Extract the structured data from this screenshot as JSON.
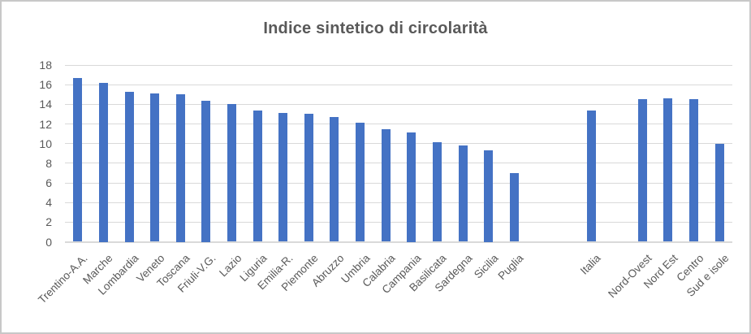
{
  "chart_data": {
    "type": "bar",
    "title": "Indice sintetico di circolarità",
    "xlabel": "",
    "ylabel": "",
    "ylim": [
      0,
      18
    ],
    "ytick_step": 2,
    "grid": true,
    "legend": false,
    "x_label_rotation": -45,
    "bar_color": "#4472C4",
    "gridline_color": "#D9D9D9",
    "text_color": "#595959",
    "groups": [
      {
        "name": "regioni",
        "items": [
          {
            "label": "Trentino-A.A.",
            "value": 16.7
          },
          {
            "label": "Marche",
            "value": 16.2
          },
          {
            "label": "Lombardia",
            "value": 15.3
          },
          {
            "label": "Veneto",
            "value": 15.1
          },
          {
            "label": "Toscana",
            "value": 15.0
          },
          {
            "label": "Friuli-V.G.",
            "value": 14.4
          },
          {
            "label": "Lazio",
            "value": 14.0
          },
          {
            "label": "Liguria",
            "value": 13.4
          },
          {
            "label": "Emilia-R.",
            "value": 13.1
          },
          {
            "label": "Piemonte",
            "value": 13.0
          },
          {
            "label": "Abruzzo",
            "value": 12.7
          },
          {
            "label": "Umbria",
            "value": 12.1
          },
          {
            "label": "Calabria",
            "value": 11.5
          },
          {
            "label": "Campania",
            "value": 11.1
          },
          {
            "label": "Basilicata",
            "value": 10.1
          },
          {
            "label": "Sardegna",
            "value": 9.8
          },
          {
            "label": "Sicilia",
            "value": 9.3
          },
          {
            "label": "Puglia",
            "value": 7.0
          }
        ]
      },
      {
        "name": "italia",
        "items": [
          {
            "label": "Italia",
            "value": 13.4
          }
        ]
      },
      {
        "name": "macro-aree",
        "items": [
          {
            "label": "Nord-Ovest",
            "value": 14.5
          },
          {
            "label": "Nord Est",
            "value": 14.6
          },
          {
            "label": "Centro",
            "value": 14.5
          },
          {
            "label": "Sud e isole",
            "value": 10.0
          }
        ]
      }
    ],
    "gap_slots_before_group": [
      0,
      2,
      1
    ]
  }
}
